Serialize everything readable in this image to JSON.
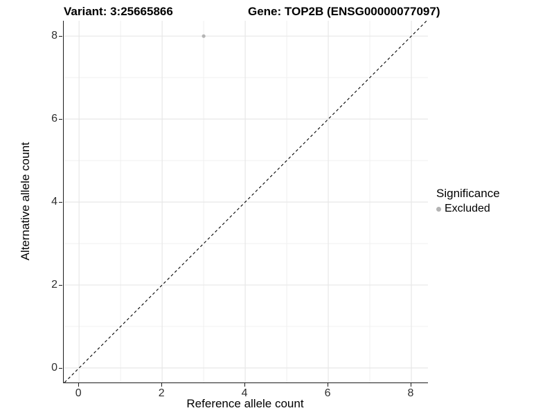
{
  "titles": {
    "variant": "Variant: 3:25665866",
    "gene": "Gene: TOP2B (ENSG00000077097)"
  },
  "legend": {
    "title": "Significance",
    "items": [
      {
        "label": "Excluded",
        "color": "#b4b4b4"
      }
    ]
  },
  "chart_data": {
    "type": "scatter",
    "title": "Variant: 3:25665866 | Gene: TOP2B (ENSG00000077097)",
    "xlabel": "Reference allele count",
    "ylabel": "Alternative allele count",
    "xlim": [
      -0.37,
      8.4
    ],
    "ylim": [
      -0.35,
      8.37
    ],
    "x_ticks": [
      0,
      2,
      4,
      6,
      8
    ],
    "y_ticks": [
      0,
      2,
      4,
      6,
      8
    ],
    "x_minor_ticks": [
      1,
      3,
      5,
      7
    ],
    "y_minor_ticks": [
      1,
      3,
      5,
      7
    ],
    "grid": true,
    "legend_position": "right",
    "series": [
      {
        "name": "Excluded",
        "color": "#b4b4b4",
        "points": [
          {
            "x": 3,
            "y": 8
          }
        ]
      }
    ],
    "reference_line": {
      "type": "identity",
      "slope": 1,
      "intercept": 0,
      "style": "dashed",
      "color": "#000000"
    },
    "colors": {
      "grid_major": "#e7e7e7",
      "grid_minor": "#f0f0f0",
      "axis_line": "#1a1a1a",
      "tick_label": "#2e2e2e",
      "background": "#ffffff"
    }
  }
}
